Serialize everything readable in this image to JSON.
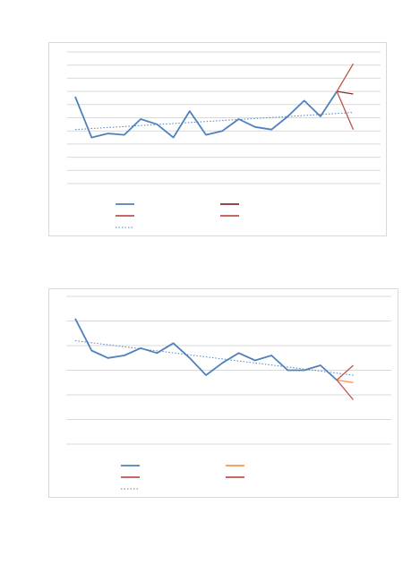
{
  "chart_data": [
    {
      "type": "line",
      "title": "",
      "xlabel": "",
      "ylabel": "",
      "grid": true,
      "legend_position": "bottom",
      "ylim": [
        0,
        10
      ],
      "x": [
        1,
        2,
        3,
        4,
        5,
        6,
        7,
        8,
        9,
        10,
        11,
        12,
        13,
        14,
        15,
        16,
        17,
        18,
        19,
        20
      ],
      "series": [
        {
          "role": "actual",
          "color": "#4f81bd",
          "style": "solid",
          "values": [
            6.6,
            3.5,
            3.8,
            3.7,
            4.9,
            4.5,
            3.5,
            5.5,
            3.7,
            4.0,
            4.9,
            4.3,
            4.1,
            5.1,
            6.3,
            5.1,
            7.0,
            null,
            null,
            null
          ]
        },
        {
          "role": "forecast",
          "color": "#8b2c2c",
          "style": "solid",
          "values": [
            null,
            null,
            null,
            null,
            null,
            null,
            null,
            null,
            null,
            null,
            null,
            null,
            null,
            null,
            null,
            null,
            7.0,
            6.8,
            null,
            null
          ]
        },
        {
          "role": "upper-bound",
          "color": "#c0504d",
          "style": "solid",
          "values": [
            null,
            null,
            null,
            null,
            null,
            null,
            null,
            null,
            null,
            null,
            null,
            null,
            null,
            null,
            null,
            null,
            7.0,
            9.1,
            null,
            null
          ]
        },
        {
          "role": "lower-bound",
          "color": "#c0504d",
          "style": "solid",
          "values": [
            null,
            null,
            null,
            null,
            null,
            null,
            null,
            null,
            null,
            null,
            null,
            null,
            null,
            null,
            null,
            null,
            7.0,
            4.1,
            null,
            null
          ]
        },
        {
          "role": "trendline",
          "color": "#4f81bd",
          "style": "dotted",
          "values": [
            4.1,
            null,
            null,
            null,
            null,
            null,
            null,
            null,
            null,
            null,
            null,
            null,
            null,
            null,
            null,
            null,
            null,
            5.4,
            null,
            null
          ]
        }
      ]
    },
    {
      "type": "line",
      "title": "",
      "xlabel": "",
      "ylabel": "",
      "grid": true,
      "legend_position": "bottom",
      "ylim": [
        0,
        6
      ],
      "x": [
        1,
        2,
        3,
        4,
        5,
        6,
        7,
        8,
        9,
        10,
        11,
        12,
        13,
        14,
        15,
        16,
        17,
        18,
        19,
        20
      ],
      "series": [
        {
          "role": "actual",
          "color": "#4f81bd",
          "style": "solid",
          "values": [
            5.1,
            3.8,
            3.5,
            3.6,
            3.9,
            3.7,
            4.1,
            3.5,
            2.8,
            3.3,
            3.7,
            3.4,
            3.6,
            3.0,
            3.0,
            3.2,
            2.6,
            null,
            null,
            null
          ]
        },
        {
          "role": "forecast",
          "color": "#f79646",
          "style": "solid",
          "values": [
            null,
            null,
            null,
            null,
            null,
            null,
            null,
            null,
            null,
            null,
            null,
            null,
            null,
            null,
            null,
            null,
            2.6,
            2.5,
            null,
            null
          ]
        },
        {
          "role": "upper-bound",
          "color": "#c0504d",
          "style": "solid",
          "values": [
            null,
            null,
            null,
            null,
            null,
            null,
            null,
            null,
            null,
            null,
            null,
            null,
            null,
            null,
            null,
            null,
            2.6,
            3.2,
            null,
            null
          ]
        },
        {
          "role": "lower-bound",
          "color": "#c0504d",
          "style": "solid",
          "values": [
            null,
            null,
            null,
            null,
            null,
            null,
            null,
            null,
            null,
            null,
            null,
            null,
            null,
            null,
            null,
            null,
            2.6,
            1.8,
            null,
            null
          ]
        },
        {
          "role": "trendline",
          "color": "#4f81bd",
          "style": "dotted",
          "values": [
            4.2,
            null,
            null,
            null,
            null,
            null,
            null,
            null,
            null,
            null,
            null,
            null,
            null,
            null,
            null,
            null,
            null,
            2.8,
            null,
            null
          ]
        }
      ]
    }
  ]
}
